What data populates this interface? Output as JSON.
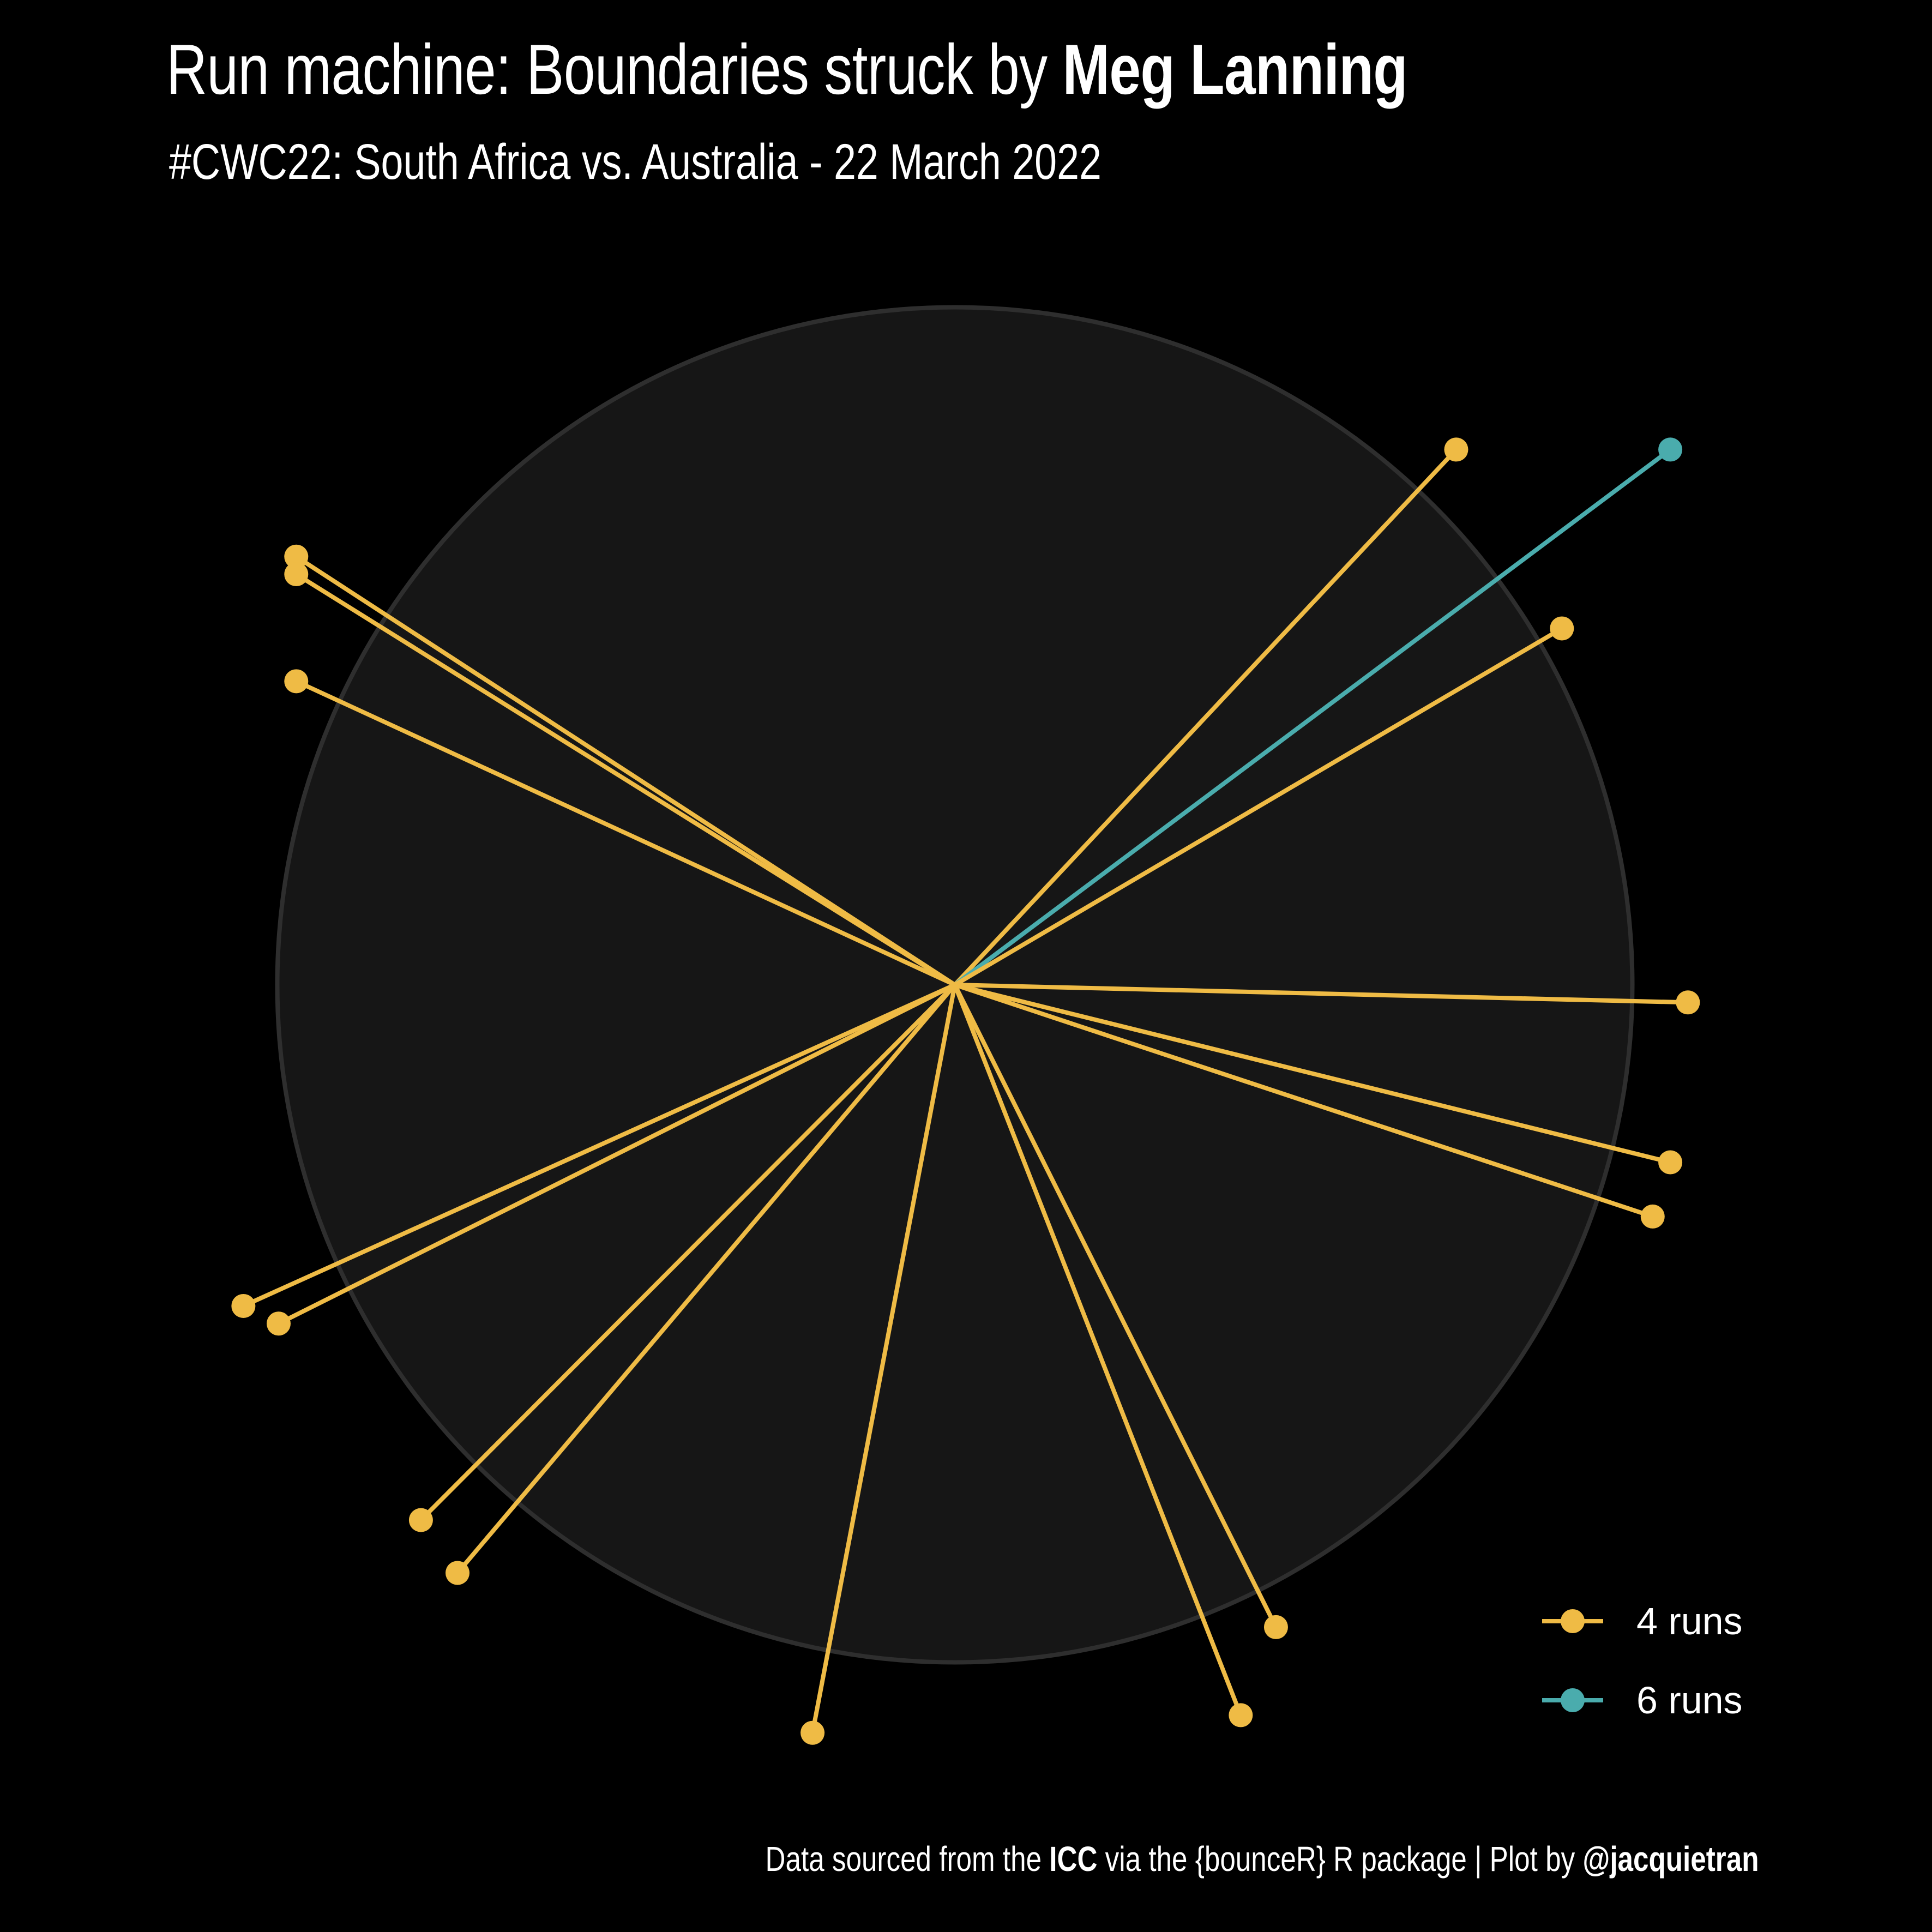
{
  "title": {
    "prefix": "Run machine: Boundaries struck by ",
    "player": "Meg Lanning"
  },
  "subtitle": "#CWC22: South Africa vs. Australia - 22 March 2022",
  "caption": {
    "part1": "Data sourced from the ",
    "source": "ICC",
    "part2": " via the {bounceR} R package | Plot by ",
    "author": "@jacquietran"
  },
  "colors": {
    "background": "#000000",
    "field": "#161616",
    "field_border": "#2e2e2e",
    "four": "#efbb45",
    "six": "#4aacad"
  },
  "chart_data": {
    "type": "scatter",
    "description_of_axes": "none",
    "legend": {
      "placement": "bottom-right",
      "entries": [
        {
          "label": "4 runs",
          "color": "#efbb45"
        },
        {
          "label": "6 runs",
          "color": "#4aacad"
        }
      ]
    },
    "field_radius": 50,
    "shots": [
      {
        "x": 37.0,
        "y": 39.5,
        "runs": 4
      },
      {
        "x": 52.8,
        "y": 39.5,
        "runs": 6
      },
      {
        "x": 44.8,
        "y": 26.3,
        "runs": 4
      },
      {
        "x": -48.6,
        "y": 31.6,
        "runs": 4
      },
      {
        "x": -48.6,
        "y": 30.3,
        "runs": 4
      },
      {
        "x": -48.6,
        "y": 22.4,
        "runs": 4
      },
      {
        "x": 54.1,
        "y": -1.3,
        "runs": 4
      },
      {
        "x": 52.8,
        "y": -13.1,
        "runs": 4
      },
      {
        "x": 51.5,
        "y": -17.1,
        "runs": 4
      },
      {
        "x": -52.5,
        "y": -23.7,
        "runs": 4
      },
      {
        "x": -49.9,
        "y": -25.0,
        "runs": 4
      },
      {
        "x": -39.4,
        "y": -39.5,
        "runs": 4
      },
      {
        "x": -36.7,
        "y": -43.4,
        "runs": 4
      },
      {
        "x": -10.5,
        "y": -55.2,
        "runs": 4
      },
      {
        "x": 21.1,
        "y": -53.9,
        "runs": 4
      },
      {
        "x": 23.7,
        "y": -47.4,
        "runs": 4
      }
    ]
  }
}
